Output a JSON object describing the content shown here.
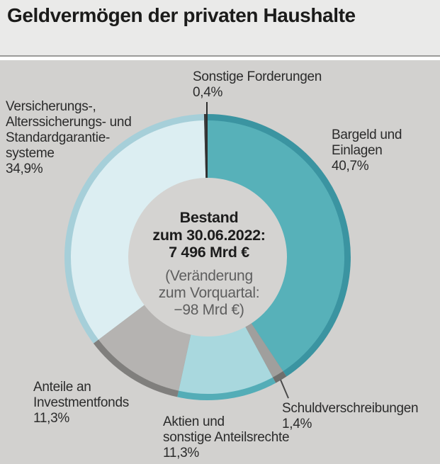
{
  "title": "Geldvermögen der privaten Haushalte",
  "chart_data": {
    "type": "pie",
    "donut": true,
    "title": "Geldvermögen der privaten Haushalte",
    "unit": "%",
    "start_angle_deg": 0,
    "direction": "clockwise",
    "legend_position": "outside-callouts",
    "segments": [
      {
        "name": "Bargeld und Einlagen",
        "value": 40.7,
        "display": "40,7%",
        "color": "#57b1b9",
        "rim_color": "#3b94a1"
      },
      {
        "name": "Schuldverschreibungen",
        "value": 1.4,
        "display": "1,4%",
        "color": "#a09f9d",
        "rim_color": "#6f6f6d"
      },
      {
        "name": "Aktien und sonstige Anteilsrechte",
        "value": 11.3,
        "display": "11,3%",
        "color": "#a9d8de",
        "rim_color": "#54adb7"
      },
      {
        "name": "Anteile an Investmentfonds",
        "value": 11.3,
        "display": "11,3%",
        "color": "#b5b3b1",
        "rim_color": "#807f7d"
      },
      {
        "name": "Versicherungs-, Alterssicherungs- und Standardgarantiesysteme",
        "value": 34.9,
        "display": "34,9%",
        "color": "#dceef2",
        "rim_color": "#a6cfd9"
      },
      {
        "name": "Sonstige Forderungen",
        "value": 0.4,
        "display": "0,4%",
        "color": "#3a3a3a",
        "rim_color": "#3a3a3a"
      }
    ],
    "center_annotation": {
      "bold_lines": [
        "Bestand",
        "zum 30.06.2022:",
        "7 496 Mrd €"
      ],
      "muted_lines": [
        "(Veränderung",
        "zum Vorquartal:",
        "−98 Mrd €)"
      ]
    }
  },
  "center_label": {
    "l1": "Bestand",
    "l2": "zum 30.06.2022:",
    "l3": "7 496 Mrd €",
    "l4": "(Veränderung",
    "l5": "zum Vorquartal:",
    "l6": "−98 Mrd €)"
  },
  "callouts": {
    "sonstige": {
      "lines": [
        "Sonstige Forderungen"
      ],
      "pct": "0,4%"
    },
    "versicherung": {
      "lines": [
        "Versicherungs-,",
        "Alterssicherungs- und",
        "Standardgarantie-",
        "systeme"
      ],
      "pct": "34,9%"
    },
    "bargeld": {
      "lines": [
        "Bargeld und",
        "Einlagen"
      ],
      "pct": "40,7%"
    },
    "invest": {
      "lines": [
        "Anteile an",
        "Investmentfonds"
      ],
      "pct": "11,3%"
    },
    "aktien": {
      "lines": [
        "Aktien und",
        "sonstige Anteilsrechte"
      ],
      "pct": "11,3%"
    },
    "schuld": {
      "lines": [
        "Schuldverschreibungen"
      ],
      "pct": "1,4%"
    }
  },
  "colors": {
    "header_bg": "#eaeae9",
    "panel_bg": "#d2d1cf",
    "hole_bg": "#d4d3d1",
    "title_text": "#1b1b1a",
    "label_text": "#2b2b2b",
    "center_bold_text": "#1c1c1c",
    "center_muted_text": "#5e5e5e"
  }
}
